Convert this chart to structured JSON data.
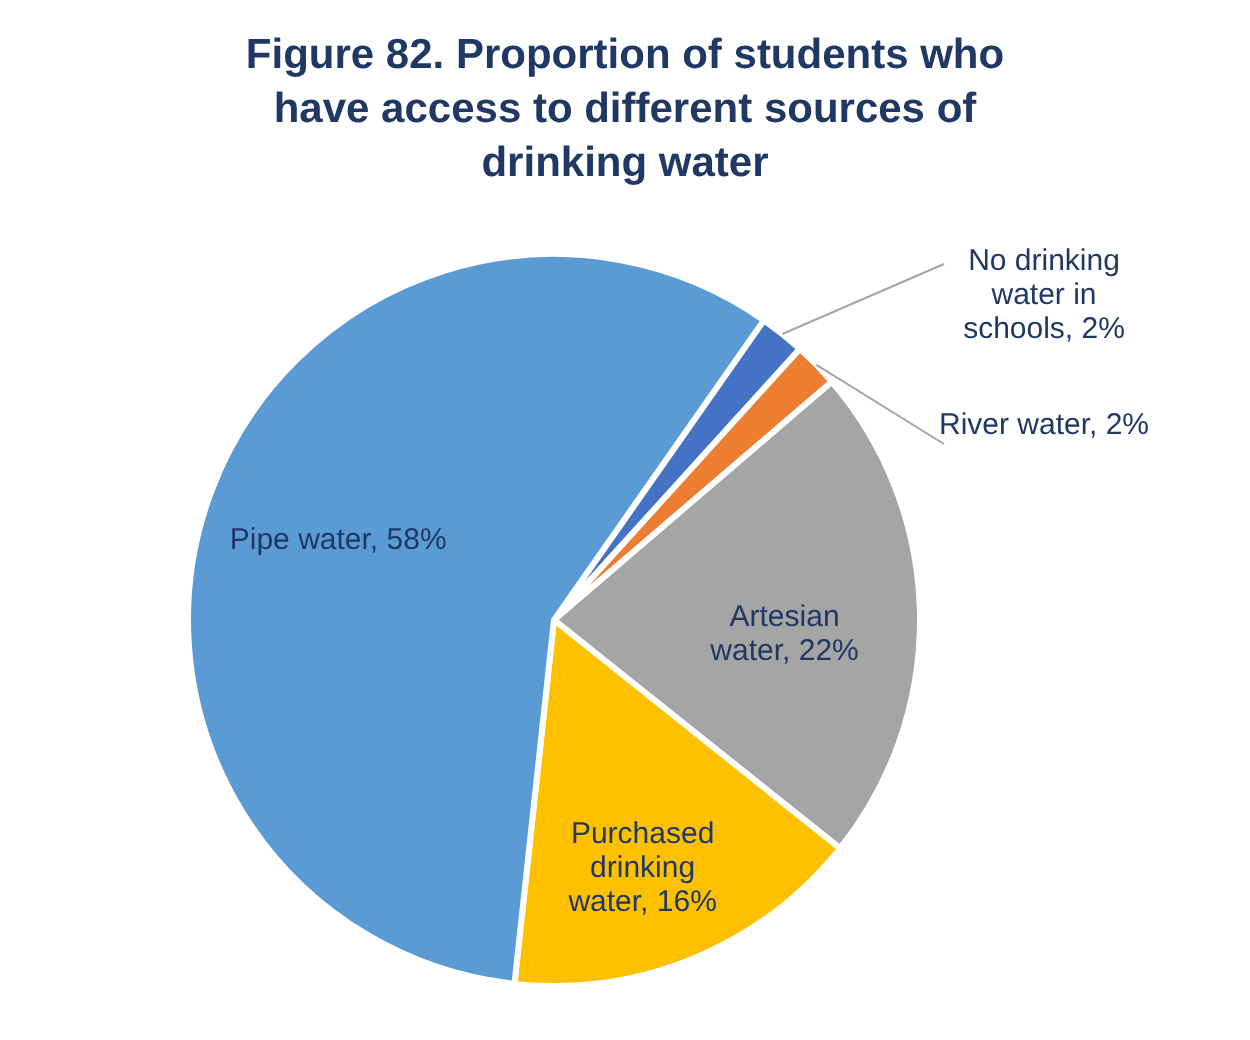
{
  "chart_data": {
    "type": "pie",
    "title": "Figure 82. Proportion of students who have access to different sources of drinking water",
    "categories": [
      "No drinking water in schools",
      "River water",
      "Artesian water",
      "Purchased drinking water",
      "Pipe water"
    ],
    "values": [
      2,
      2,
      22,
      16,
      58
    ],
    "colors": [
      "#4472c4",
      "#ed7d31",
      "#a5a5a5",
      "#ffc000",
      "#5b9bd5"
    ],
    "value_labels": [
      "2%",
      "2%",
      "22%",
      "16%",
      "58%"
    ],
    "data_labels": true
  }
}
